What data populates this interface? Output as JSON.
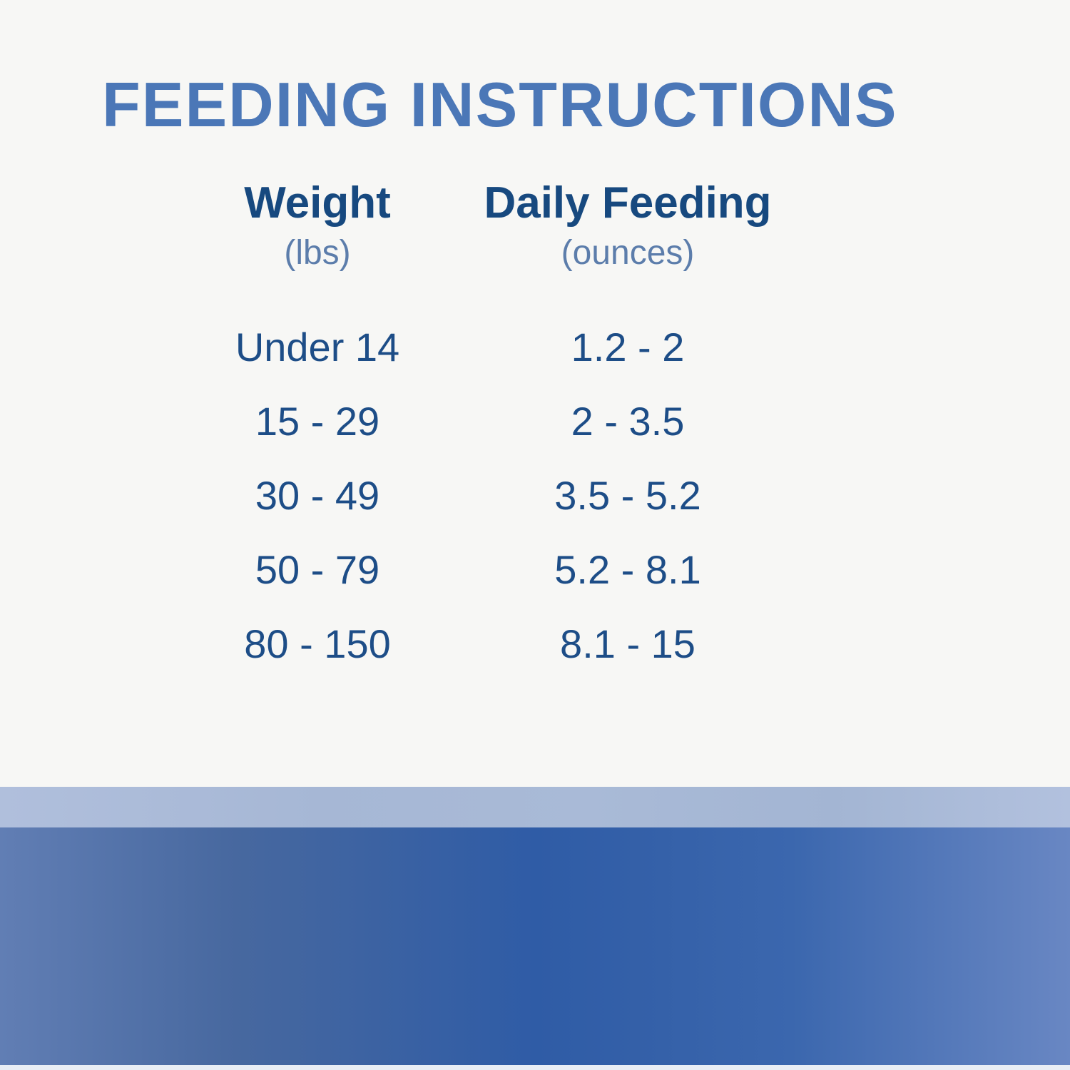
{
  "title": "FEEDING INSTRUCTIONS",
  "chart_data": {
    "type": "table",
    "title": "FEEDING INSTRUCTIONS",
    "columns": [
      {
        "header": "Weight",
        "unit": "(lbs)"
      },
      {
        "header": "Daily Feeding",
        "unit": "(ounces)"
      }
    ],
    "rows": [
      [
        "Under 14",
        "1.2 - 2"
      ],
      [
        "15 - 29",
        "2 - 3.5"
      ],
      [
        "30 - 49",
        "3.5 - 5.2"
      ],
      [
        "50 - 79",
        "5.2 - 8.1"
      ],
      [
        "80 - 150",
        "8.1 - 15"
      ]
    ]
  },
  "colors": {
    "background": "#f7f7f5",
    "title_blue": "#4b77b7",
    "header_navy": "#17497f",
    "subheader_slate": "#5c7dab",
    "value_navy": "#1d4d87",
    "band_light_blue": "#a9bad7",
    "band_gradient_left": "#617eb4",
    "band_gradient_mid": "#2f5ca6",
    "band_gradient_right": "#6987c3"
  }
}
